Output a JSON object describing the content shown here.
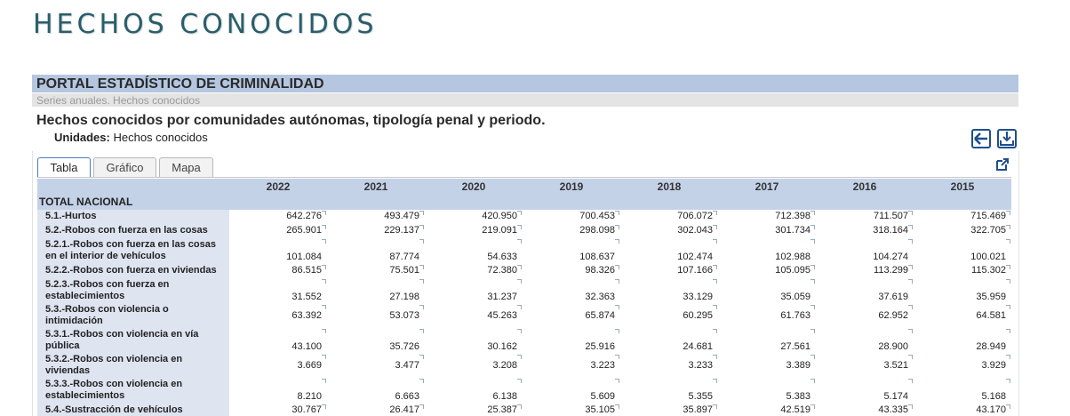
{
  "header": {
    "title": "HECHOS CONOCIDOS",
    "portal": "PORTAL ESTADÍSTICO DE CRIMINALIDAD",
    "series": "Series anuales. Hechos conocidos"
  },
  "table_title": "Hechos conocidos por comunidades autónomas, tipología penal y periodo.",
  "units": {
    "label": "Unidades:",
    "value": "Hechos conocidos"
  },
  "tabs": [
    "Tabla",
    "Gráfico",
    "Mapa"
  ],
  "table": {
    "corner": "TOTAL NACIONAL",
    "columns": [
      "2022",
      "2021",
      "2020",
      "2019",
      "2018",
      "2017",
      "2016",
      "2015"
    ],
    "rows": [
      {
        "label": "5.1.-Hurtos",
        "values": [
          "642.276",
          "493.479",
          "420.950",
          "700.453",
          "706.072",
          "712.398",
          "711.507",
          "715.469"
        ]
      },
      {
        "label": "5.2.-Robos con fuerza en las cosas",
        "values": [
          "265.901",
          "229.137",
          "219.091",
          "298.098",
          "302.043",
          "301.734",
          "318.164",
          "322.705"
        ]
      },
      {
        "label": "5.2.1.-Robos con fuerza en las cosas en el interior de vehículos",
        "values": [
          "101.084",
          "87.774",
          "54.633",
          "108.637",
          "102.474",
          "102.988",
          "104.274",
          "100.021"
        ]
      },
      {
        "label": "5.2.2.-Robos con fuerza en viviendas",
        "values": [
          "86.515",
          "75.501",
          "72.380",
          "98.326",
          "107.166",
          "105.095",
          "113.299",
          "115.302"
        ]
      },
      {
        "label": "5.2.3.-Robos con fuerza en establecimientos",
        "values": [
          "31.552",
          "27.198",
          "31.237",
          "32.363",
          "33.129",
          "35.059",
          "37.619",
          "35.959"
        ]
      },
      {
        "label": "5.3.-Robos con violencia o intimidación",
        "values": [
          "63.392",
          "53.073",
          "45.263",
          "65.874",
          "60.295",
          "61.763",
          "62.952",
          "64.581"
        ]
      },
      {
        "label": "5.3.1.-Robos con violencia en vía pública",
        "values": [
          "43.100",
          "35.726",
          "30.162",
          "25.916",
          "24.681",
          "27.561",
          "28.900",
          "28.949"
        ]
      },
      {
        "label": "5.3.2.-Robos con violencia en viviendas",
        "values": [
          "3.669",
          "3.477",
          "3.208",
          "3.223",
          "3.233",
          "3.389",
          "3.521",
          "3.929"
        ]
      },
      {
        "label": "5.3.3.-Robos con violencia en establecimientos",
        "values": [
          "8.210",
          "6.663",
          "6.138",
          "5.609",
          "5.355",
          "5.383",
          "5.174",
          "5.168"
        ]
      },
      {
        "label": "5.4.-Sustracción de vehículos",
        "values": [
          "30.767",
          "26.417",
          "25.387",
          "35.105",
          "35.897",
          "42.519",
          "43.335",
          "43.170"
        ]
      }
    ]
  }
}
